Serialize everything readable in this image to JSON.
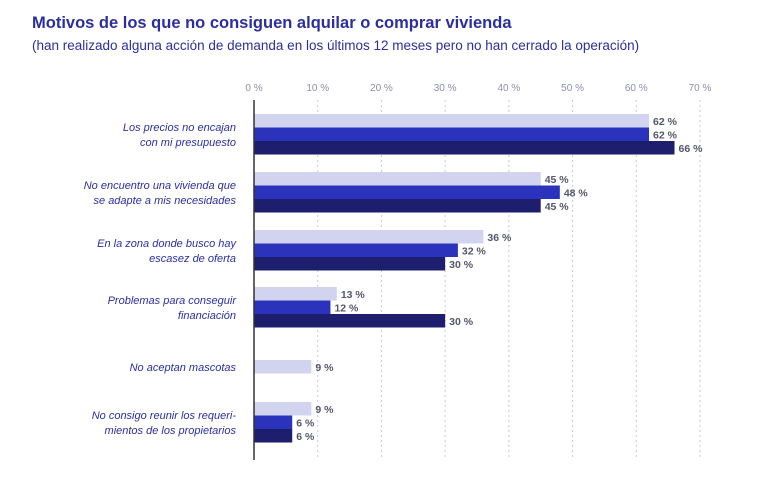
{
  "title": "Motivos de los que no consiguen alquilar o comprar vivienda",
  "subtitle": "(han realizado alguna acción de demanda en los últimos 12 meses pero no han cerrado la operación)",
  "colors": {
    "series": [
      "#d2d4ef",
      "#2b33bd",
      "#1d1f6e"
    ],
    "axis": "#333333",
    "grid": "#c8c8d0"
  },
  "chart_data": {
    "type": "bar",
    "orientation": "horizontal",
    "categories": [
      [
        "Los precios no encajan",
        "con mi presupuesto"
      ],
      [
        "No encuentro una vivienda que",
        "se adapte a mis necesidades"
      ],
      [
        "En la zona donde busco hay",
        "escasez de oferta"
      ],
      [
        "Problemas para conseguir",
        "financiación"
      ],
      [
        "No aceptan mascotas"
      ],
      [
        "No consigo reunir los requeri-",
        "mientos de los propietarios"
      ]
    ],
    "series": [
      {
        "values": [
          62,
          45,
          36,
          13,
          9,
          9
        ]
      },
      {
        "values": [
          62,
          48,
          32,
          12,
          null,
          6
        ]
      },
      {
        "values": [
          66,
          45,
          30,
          30,
          null,
          6
        ]
      }
    ],
    "xlim": [
      0,
      70
    ],
    "xticks": [
      0,
      10,
      20,
      30,
      40,
      50,
      60,
      70
    ],
    "tick_suffix": " %",
    "value_suffix": " %",
    "grid": true
  }
}
